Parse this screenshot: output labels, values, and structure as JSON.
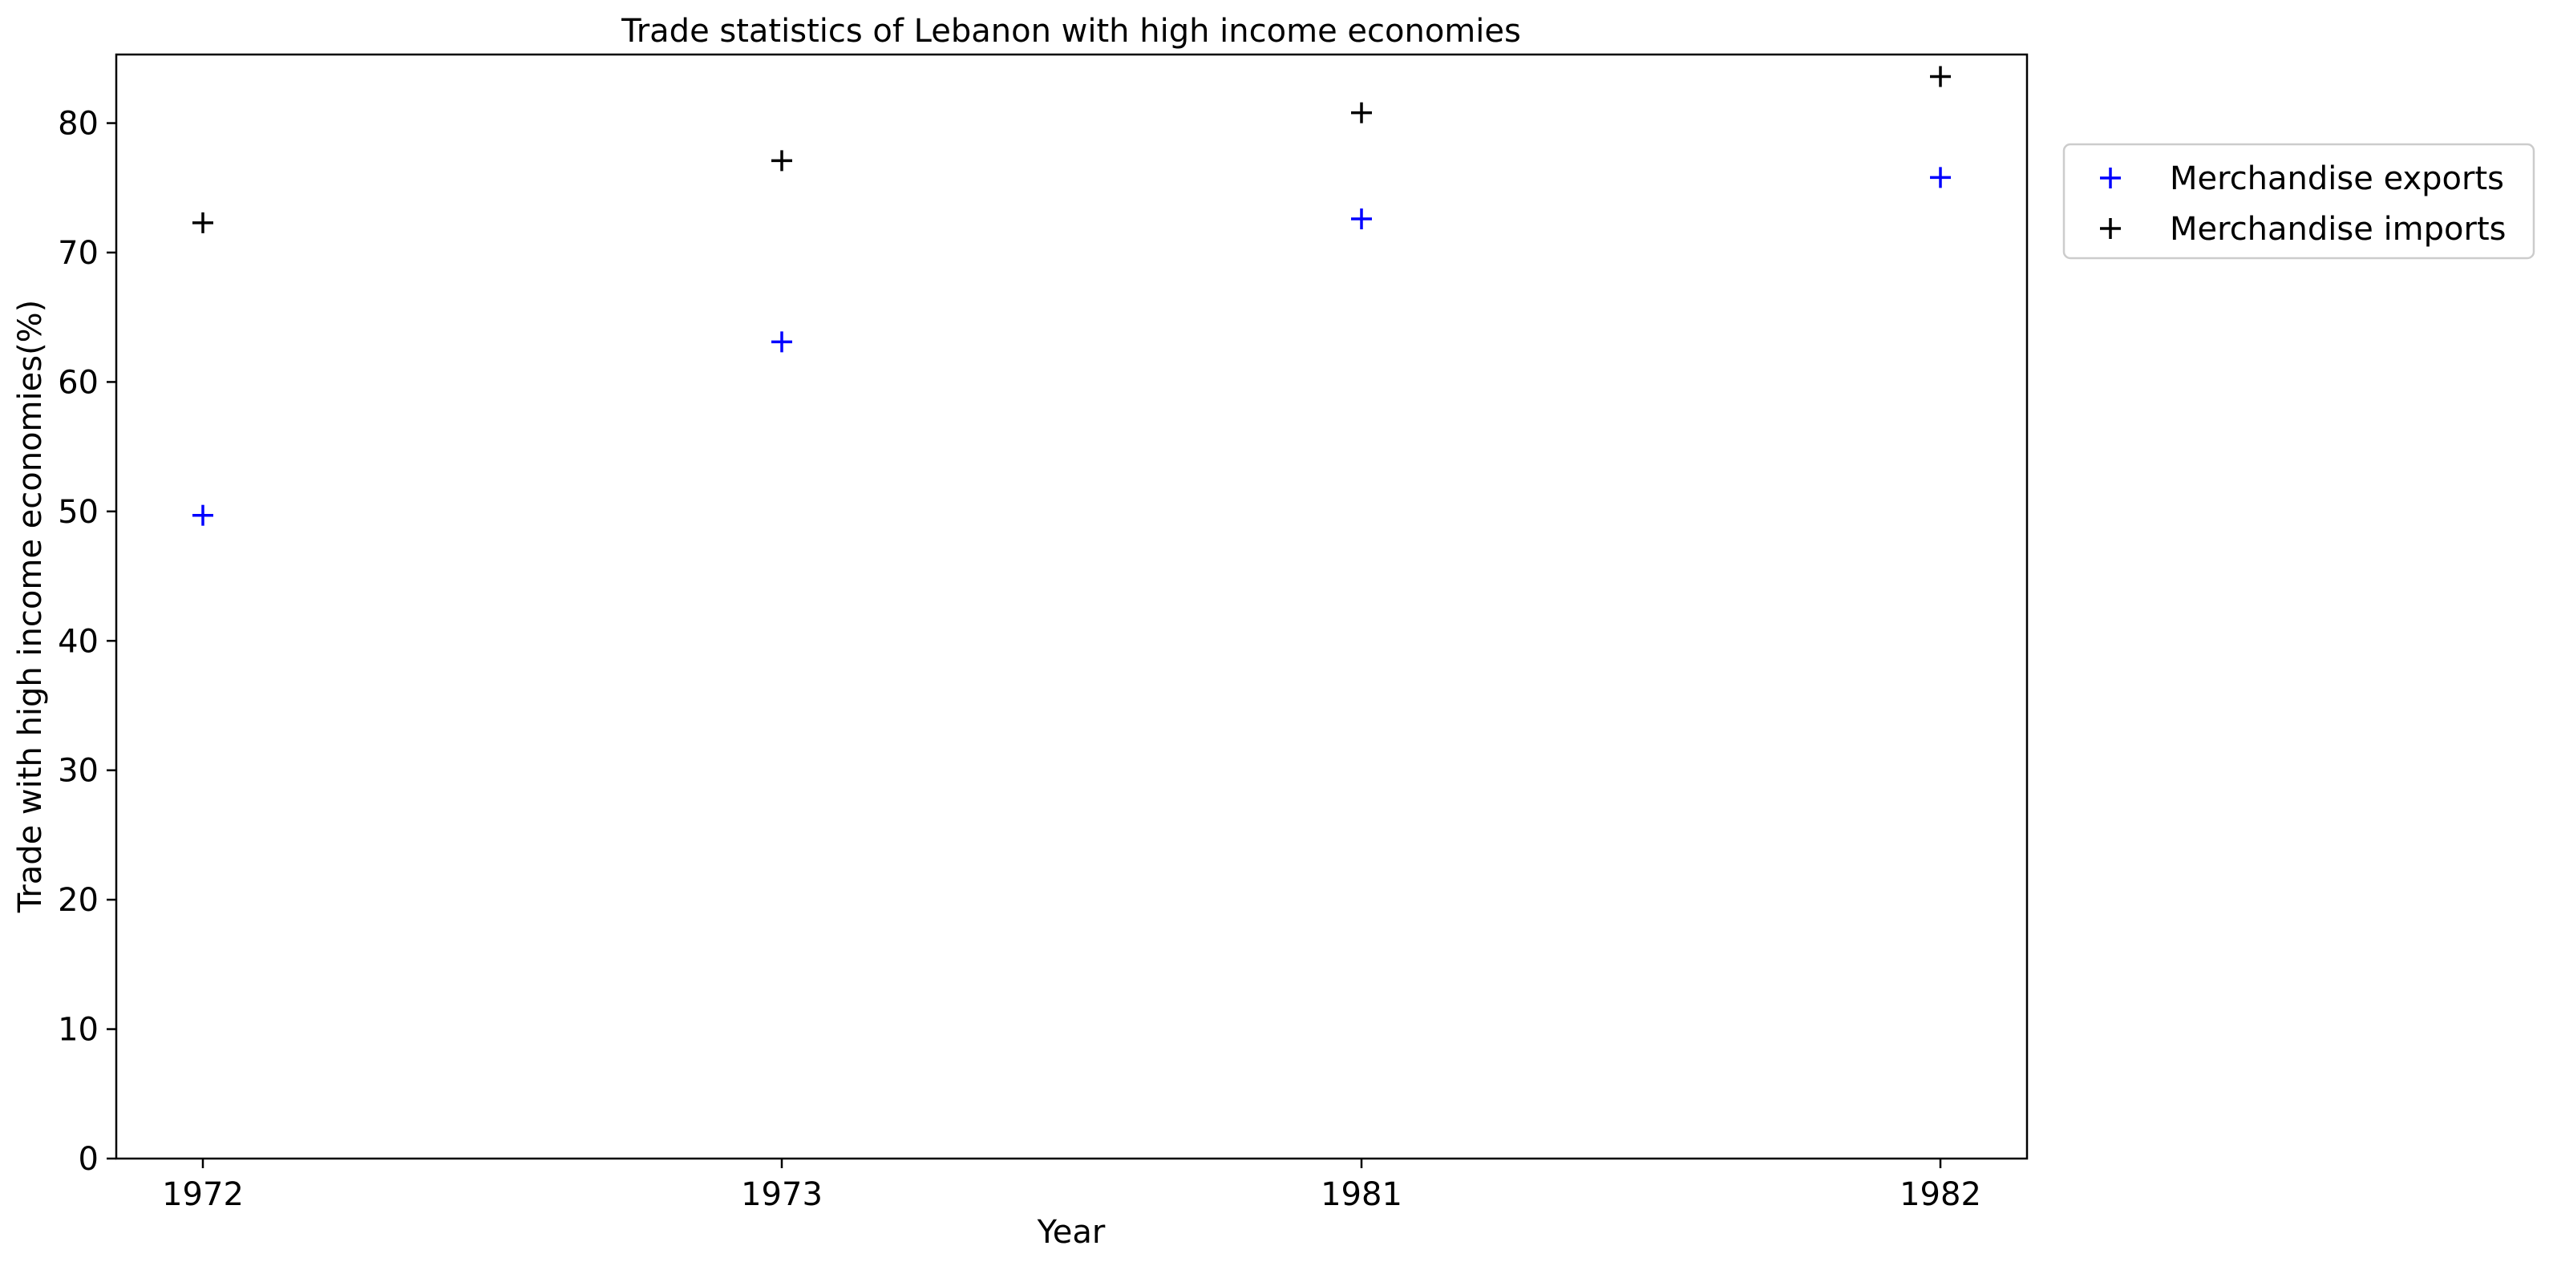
{
  "chart_data": {
    "type": "scatter",
    "title": "Trade statistics of Lebanon with high income economies",
    "xlabel": "Year",
    "ylabel": "Trade with high income economies(%)",
    "categories": [
      "1972",
      "1973",
      "1981",
      "1982"
    ],
    "ylim": [
      0,
      85.3
    ],
    "yticks": [
      0,
      10,
      20,
      30,
      40,
      50,
      60,
      70,
      80
    ],
    "grid": false,
    "legend_position": "outside-top-right",
    "series": [
      {
        "name": "Merchandise exports",
        "color": "#0000ff",
        "marker": "plus",
        "values": [
          49.7,
          63.1,
          72.6,
          75.8
        ]
      },
      {
        "name": "Merchandise imports",
        "color": "#000000",
        "marker": "plus",
        "values": [
          72.3,
          77.1,
          80.8,
          83.6
        ]
      }
    ]
  }
}
